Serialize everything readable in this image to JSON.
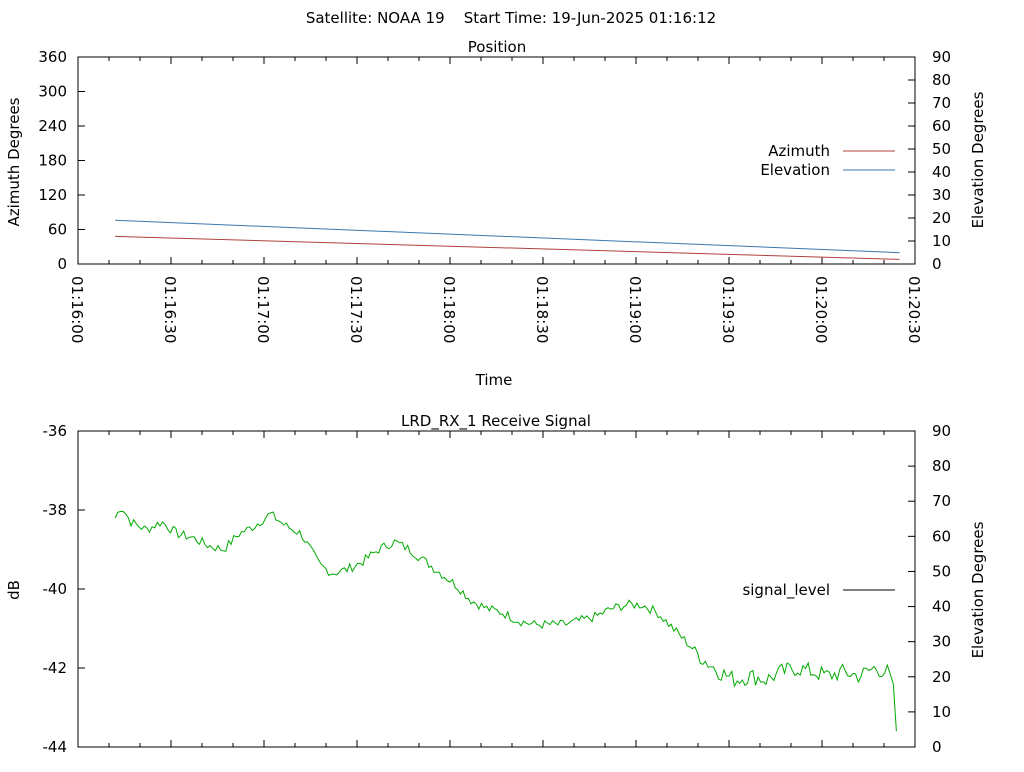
{
  "header": {
    "title": "Satellite: NOAA 19    Start Time: 19-Jun-2025 01:16:12"
  },
  "chart_data": [
    {
      "type": "line",
      "title": "Position",
      "xlabel": "Time",
      "ylabel": "Azimuth Degrees",
      "y2label": "Elevation Degrees",
      "xticks": [
        "01:16:00",
        "01:16:30",
        "01:17:00",
        "01:17:30",
        "01:18:00",
        "01:18:30",
        "01:19:00",
        "01:19:30",
        "01:20:00",
        "01:20:30"
      ],
      "xrange_seconds": [
        0,
        270
      ],
      "ylim": [
        0,
        360
      ],
      "yticks": [
        0,
        60,
        120,
        180,
        240,
        300,
        360
      ],
      "y2lim": [
        0,
        90
      ],
      "y2ticks": [
        0,
        10,
        20,
        30,
        40,
        50,
        60,
        70,
        80,
        90
      ],
      "grid": false,
      "legend": "right",
      "series": [
        {
          "name": "Azimuth",
          "axis": "y",
          "color": "#b0413e",
          "points": [
            [
              12,
              48
            ],
            [
              265,
              8
            ]
          ]
        },
        {
          "name": "Elevation",
          "axis": "y2",
          "color": "#3b77b0",
          "points": [
            [
              12,
              19
            ],
            [
              265,
              4.9
            ]
          ]
        }
      ]
    },
    {
      "type": "line",
      "title": "LRD_RX_1 Receive Signal",
      "ylabel": "dB",
      "y2label": "Elevation Degrees",
      "ylim": [
        -44,
        -36
      ],
      "yticks": [
        -44,
        -42,
        -40,
        -38,
        -36
      ],
      "y2lim": [
        0,
        90
      ],
      "y2ticks": [
        0,
        10,
        20,
        30,
        40,
        50,
        60,
        70,
        80,
        90
      ],
      "grid": false,
      "legend": "right",
      "series": [
        {
          "name": "signal_level",
          "legend_color": "#000000",
          "color": "#00aa00",
          "keypoints": [
            [
              12,
              -38.2
            ],
            [
              14,
              -37.9
            ],
            [
              17,
              -38.3
            ],
            [
              22,
              -38.5
            ],
            [
              27,
              -38.3
            ],
            [
              32,
              -38.6
            ],
            [
              37,
              -38.7
            ],
            [
              42,
              -38.9
            ],
            [
              47,
              -39.0
            ],
            [
              52,
              -38.6
            ],
            [
              57,
              -38.4
            ],
            [
              62,
              -38.1
            ],
            [
              67,
              -38.4
            ],
            [
              72,
              -38.6
            ],
            [
              75,
              -39.0
            ],
            [
              78,
              -39.4
            ],
            [
              82,
              -39.6
            ],
            [
              87,
              -39.5
            ],
            [
              92,
              -39.3
            ],
            [
              97,
              -39.0
            ],
            [
              102,
              -38.8
            ],
            [
              107,
              -39.0
            ],
            [
              112,
              -39.3
            ],
            [
              117,
              -39.6
            ],
            [
              122,
              -39.9
            ],
            [
              127,
              -40.3
            ],
            [
              132,
              -40.5
            ],
            [
              137,
              -40.6
            ],
            [
              142,
              -40.8
            ],
            [
              147,
              -40.9
            ],
            [
              152,
              -40.9
            ],
            [
              157,
              -40.9
            ],
            [
              162,
              -40.8
            ],
            [
              167,
              -40.7
            ],
            [
              172,
              -40.5
            ],
            [
              177,
              -40.4
            ],
            [
              182,
              -40.4
            ],
            [
              187,
              -40.6
            ],
            [
              192,
              -41.0
            ],
            [
              197,
              -41.4
            ],
            [
              202,
              -41.8
            ],
            [
              207,
              -42.1
            ],
            [
              212,
              -42.3
            ],
            [
              217,
              -42.2
            ],
            [
              222,
              -42.3
            ],
            [
              227,
              -42.1
            ],
            [
              232,
              -42.0
            ],
            [
              237,
              -42.1
            ],
            [
              242,
              -42.2
            ],
            [
              247,
              -42.1
            ],
            [
              252,
              -42.2
            ],
            [
              257,
              -42.0
            ],
            [
              261,
              -42.1
            ],
            [
              263,
              -42.4
            ],
            [
              264,
              -43.6
            ]
          ],
          "noise_db": 0.12,
          "sample_step_s": 0.85
        }
      ]
    }
  ]
}
